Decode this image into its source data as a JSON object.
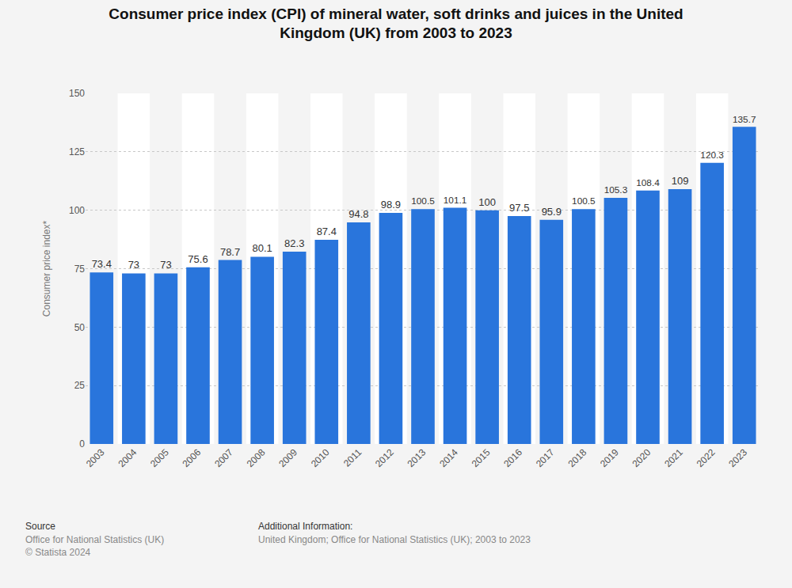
{
  "chart_data": {
    "type": "bar",
    "title": "Consumer price index (CPI) of mineral water, soft drinks and juices in the United Kingdom (UK) from 2003 to 2023",
    "y_label": "Consumer price index*",
    "categories": [
      "2003",
      "2004",
      "2005",
      "2006",
      "2007",
      "2008",
      "2009",
      "2010",
      "2011",
      "2012",
      "2013",
      "2014",
      "2015",
      "2016",
      "2017",
      "2018",
      "2019",
      "2020",
      "2021",
      "2022",
      "2023"
    ],
    "values": [
      73.4,
      73,
      73,
      75.6,
      78.7,
      80.1,
      82.3,
      87.4,
      94.8,
      98.9,
      100.5,
      101.1,
      100,
      97.5,
      95.9,
      100.5,
      105.3,
      108.4,
      109,
      120.3,
      135.7
    ],
    "color": "#2975dc",
    "ylim": [
      0,
      150
    ],
    "yticks": [
      0,
      25,
      50,
      75,
      100,
      125,
      150
    ],
    "grid": true,
    "data_labels": true,
    "source_label": "Source",
    "source": "Office for National Statistics (UK)",
    "copyright": "© Statista 2024",
    "info_label": "Additional Information:",
    "info": "United Kingdom; Office for National Statistics (UK); 2003 to 2023"
  }
}
